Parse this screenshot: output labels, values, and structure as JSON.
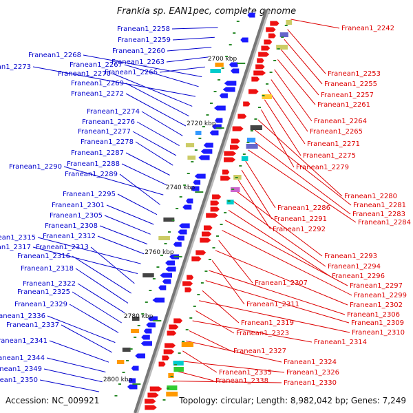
{
  "title": "Frankia sp. EAN1pec, complete genome",
  "accession": "Accession: NC_009921",
  "summary": "Topology: circular; Length: 8,982,042 bp; Genes: 7,249",
  "colors": {
    "left_label": "#0000cc",
    "right_label": "#dd0000",
    "left_arrow": "#1a1aff",
    "right_arrow": "#ee1111",
    "backbone": "#777777",
    "tick": "#2a8a2a"
  },
  "ticks": [
    {
      "label": "2700 kbp"
    },
    {
      "label": "2720 kbp"
    },
    {
      "label": "2740 kbp"
    },
    {
      "label": "2760 kbp"
    },
    {
      "label": "2780 kbp"
    },
    {
      "label": "2800 kbp"
    }
  ],
  "left_genes": [
    "Franean1_2258",
    "Franean1_2259",
    "Franean1_2260",
    "Franean1_2263",
    "Franean1_2266",
    "Franean1_2268",
    "Franean1_2267",
    "Franean1_2273",
    "Franean1_2270",
    "Franean1_2269",
    "Franean1_2272",
    "Franean1_2274",
    "Franean1_2276",
    "Franean1_2277",
    "Franean1_2278",
    "Franean1_2287",
    "Franean1_2288",
    "Franean1_2290",
    "Franean1_2289",
    "Franean1_2295",
    "Franean1_2301",
    "Franean1_2305",
    "Franean1_2308",
    "Franean1_2312",
    "Franean1_2315",
    "Franean1_2317",
    "Franean1_2313",
    "Franean1_2316",
    "Franean1_2318",
    "Franean1_2322",
    "Franean1_2325",
    "Franean1_2329",
    "Franean1_2336",
    "Franean1_2337",
    "Franean1_2341",
    "Franean1_2344",
    "Franean1_2349",
    "Franean1_2350"
  ],
  "right_genes": [
    "Franean1_2242",
    "Franean1_2253",
    "Franean1_2255",
    "Franean1_2257",
    "Franean1_2261",
    "Franean1_2264",
    "Franean1_2265",
    "Franean1_2271",
    "Franean1_2275",
    "Franean1_2279",
    "Franean1_2280",
    "Franean1_2281",
    "Franean1_2283",
    "Franean1_2284",
    "Franean1_2286",
    "Franean1_2291",
    "Franean1_2292",
    "Franean1_2293",
    "Franean1_2294",
    "Franean1_2296",
    "Franean1_2297",
    "Franean1_2299",
    "Franean1_2307",
    "Franean1_2302",
    "Franean1_2311",
    "Franean1_2306",
    "Franean1_2309",
    "Franean1_2319",
    "Franean1_2310",
    "Franean1_2323",
    "Franean1_2314",
    "Franean1_2327",
    "Franean1_2324",
    "Franean1_2335",
    "Franean1_2326",
    "Franean1_2338",
    "Franean1_2330"
  ]
}
